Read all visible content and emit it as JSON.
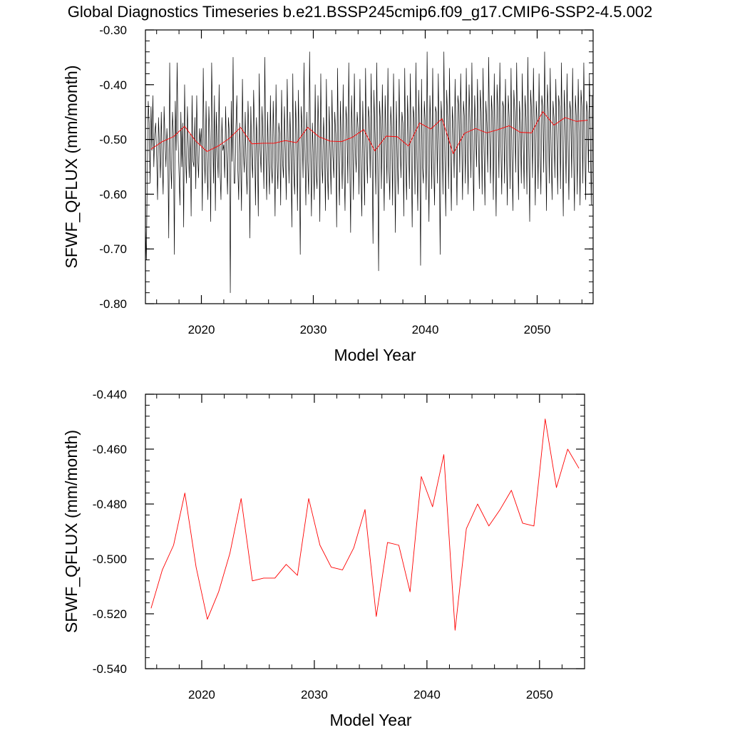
{
  "figure_title": "Global Diagnostics Timeseries b.e21.BSSP245cmip6.f09_g17.CMIP6-SSP2-4.5.002",
  "colors": {
    "monthly_series": "#000000",
    "annual_series": "#ff0000",
    "axes": "#000000"
  },
  "chart_data": [
    {
      "type": "line",
      "title": "",
      "xlabel": "Model Year",
      "ylabel": "SFWF_QFLUX (mm/month)",
      "xlim": [
        2015.0,
        2055.0
      ],
      "ylim": [
        -0.8,
        -0.3
      ],
      "xticks": [
        2020,
        2030,
        2040,
        2050
      ],
      "xtick_labels": [
        "2020",
        "2030",
        "2040",
        "2050"
      ],
      "yticks": [
        -0.8,
        -0.7,
        -0.6,
        -0.5,
        -0.4,
        -0.3
      ],
      "ytick_labels": [
        "-0.80",
        "-0.70",
        "-0.60",
        "-0.50",
        "-0.40",
        "-0.30"
      ],
      "series": [
        {
          "name": "monthly",
          "color": "#000000",
          "x_start": 2015.0,
          "x_step": 0.0833333,
          "values": [
            -0.66,
            -0.72,
            -0.56,
            -0.43,
            -0.47,
            -0.58,
            -0.44,
            -0.52,
            -0.42,
            -0.55,
            -0.49,
            -0.47,
            -0.53,
            -0.61,
            -0.46,
            -0.51,
            -0.57,
            -0.45,
            -0.54,
            -0.6,
            -0.44,
            -0.5,
            -0.55,
            -0.48,
            -0.52,
            -0.68,
            -0.36,
            -0.54,
            -0.59,
            -0.45,
            -0.49,
            -0.71,
            -0.43,
            -0.52,
            -0.36,
            -0.5,
            -0.56,
            -0.62,
            -0.45,
            -0.55,
            -0.47,
            -0.66,
            -0.4,
            -0.53,
            -0.58,
            -0.44,
            -0.51,
            -0.57,
            -0.49,
            -0.64,
            -0.42,
            -0.54,
            -0.55,
            -0.46,
            -0.59,
            -0.42,
            -0.53,
            -0.57,
            -0.48,
            -0.51,
            -0.48,
            -0.63,
            -0.37,
            -0.52,
            -0.58,
            -0.43,
            -0.55,
            -0.61,
            -0.44,
            -0.5,
            -0.65,
            -0.36,
            -0.47,
            -0.58,
            -0.42,
            -0.63,
            -0.45,
            -0.52,
            -0.57,
            -0.4,
            -0.56,
            -0.61,
            -0.46,
            -0.52,
            -0.51,
            -0.57,
            -0.44,
            -0.53,
            -0.6,
            -0.46,
            -0.49,
            -0.78,
            -0.43,
            -0.54,
            -0.35,
            -0.58,
            -0.58,
            -0.48,
            -0.42,
            -0.55,
            -0.61,
            -0.47,
            -0.53,
            -0.63,
            -0.39,
            -0.52,
            -0.56,
            -0.45,
            -0.55,
            -0.6,
            -0.43,
            -0.5,
            -0.68,
            -0.44,
            -0.53,
            -0.57,
            -0.41,
            -0.49,
            -0.62,
            -0.46,
            -0.51,
            -0.64,
            -0.38,
            -0.52,
            -0.56,
            -0.44,
            -0.5,
            -0.59,
            -0.35,
            -0.52,
            -0.61,
            -0.45,
            -0.54,
            -0.6,
            -0.42,
            -0.55,
            -0.58,
            -0.43,
            -0.51,
            -0.64,
            -0.4,
            -0.53,
            -0.59,
            -0.47,
            -0.49,
            -0.62,
            -0.41,
            -0.54,
            -0.57,
            -0.44,
            -0.52,
            -0.61,
            -0.39,
            -0.5,
            -0.58,
            -0.45,
            -0.52,
            -0.66,
            -0.38,
            -0.56,
            -0.6,
            -0.43,
            -0.49,
            -0.63,
            -0.41,
            -0.53,
            -0.71,
            -0.44,
            -0.48,
            -0.57,
            -0.36,
            -0.52,
            -0.62,
            -0.45,
            -0.54,
            -0.6,
            -0.34,
            -0.51,
            -0.64,
            -0.47,
            -0.53,
            -0.61,
            -0.4,
            -0.56,
            -0.59,
            -0.42,
            -0.5,
            -0.65,
            -0.38,
            -0.54,
            -0.58,
            -0.46,
            -0.51,
            -0.63,
            -0.39,
            -0.55,
            -0.61,
            -0.44,
            -0.52,
            -0.6,
            -0.41,
            -0.53,
            -0.57,
            -0.45,
            -0.49,
            -0.66,
            -0.37,
            -0.54,
            -0.62,
            -0.43,
            -0.51,
            -0.59,
            -0.4,
            -0.55,
            -0.63,
            -0.44,
            -0.47,
            -0.58,
            -0.36,
            -0.53,
            -0.67,
            -0.42,
            -0.5,
            -0.61,
            -0.38,
            -0.52,
            -0.56,
            -0.45,
            -0.48,
            -0.6,
            -0.39,
            -0.55,
            -0.64,
            -0.43,
            -0.52,
            -0.62,
            -0.37,
            -0.51,
            -0.58,
            -0.44,
            -0.46,
            -0.57,
            -0.38,
            -0.53,
            -0.69,
            -0.41,
            -0.49,
            -0.6,
            -0.36,
            -0.54,
            -0.74,
            -0.43,
            -0.47,
            -0.59,
            -0.4,
            -0.52,
            -0.63,
            -0.42,
            -0.5,
            -0.58,
            -0.37,
            -0.55,
            -0.61,
            -0.44,
            -0.48,
            -0.62,
            -0.38,
            -0.51,
            -0.67,
            -0.43,
            -0.53,
            -0.6,
            -0.39,
            -0.5,
            -0.57,
            -0.45,
            -0.47,
            -0.64,
            -0.37,
            -0.54,
            -0.61,
            -0.42,
            -0.49,
            -0.59,
            -0.38,
            -0.52,
            -0.66,
            -0.44,
            -0.46,
            -0.6,
            -0.36,
            -0.53,
            -0.63,
            -0.41,
            -0.5,
            -0.73,
            -0.39,
            -0.55,
            -0.58,
            -0.43,
            -0.47,
            -0.61,
            -0.34,
            -0.52,
            -0.65,
            -0.42,
            -0.48,
            -0.59,
            -0.37,
            -0.54,
            -0.62,
            -0.44,
            -0.45,
            -0.58,
            -0.38,
            -0.51,
            -0.71,
            -0.43,
            -0.47,
            -0.6,
            -0.34,
            -0.53,
            -0.64,
            -0.41,
            -0.46,
            -0.59,
            -0.37,
            -0.52,
            -0.63,
            -0.44,
            -0.48,
            -0.57,
            -0.39,
            -0.5,
            -0.62,
            -0.42,
            -0.44,
            -0.56,
            -0.38,
            -0.49,
            -0.61,
            -0.43,
            -0.46,
            -0.58,
            -0.37,
            -0.51,
            -0.6,
            -0.4,
            -0.47,
            -0.57,
            -0.36,
            -0.52,
            -0.63,
            -0.42,
            -0.48,
            -0.55,
            -0.39,
            -0.5,
            -0.59,
            -0.41,
            -0.45,
            -0.6,
            -0.37,
            -0.51,
            -0.62,
            -0.43,
            -0.47,
            -0.56,
            -0.35,
            -0.49,
            -0.58,
            -0.42,
            -0.46,
            -0.61,
            -0.38,
            -0.52,
            -0.64,
            -0.4,
            -0.45,
            -0.57,
            -0.36,
            -0.5,
            -0.6,
            -0.43,
            -0.44,
            -0.58,
            -0.39,
            -0.51,
            -0.62,
            -0.42,
            -0.46,
            -0.59,
            -0.37,
            -0.53,
            -0.63,
            -0.41,
            -0.45,
            -0.56,
            -0.36,
            -0.49,
            -0.61,
            -0.43,
            -0.47,
            -0.58,
            -0.38,
            -0.5,
            -0.59,
            -0.42,
            -0.46,
            -0.6,
            -0.35,
            -0.52,
            -0.65,
            -0.41,
            -0.45,
            -0.57,
            -0.37,
            -0.49,
            -0.62,
            -0.43,
            -0.47,
            -0.59,
            -0.38,
            -0.51,
            -0.6,
            -0.42,
            -0.44,
            -0.56,
            -0.34,
            -0.5,
            -0.63,
            -0.4,
            -0.45,
            -0.58,
            -0.37,
            -0.52,
            -0.61,
            -0.43,
            -0.46,
            -0.57,
            -0.39,
            -0.49,
            -0.6,
            -0.42,
            -0.44,
            -0.59,
            -0.36,
            -0.51,
            -0.64,
            -0.41,
            -0.47,
            -0.58,
            -0.38,
            -0.5,
            -0.61,
            -0.43,
            -0.45,
            -0.57,
            -0.37,
            -0.52,
            -0.63,
            -0.42,
            -0.46,
            -0.6,
            -0.39,
            -0.49,
            -0.62,
            -0.41,
            -0.44,
            -0.58,
            -0.36,
            -0.5,
            -0.61,
            -0.43,
            -0.45,
            -0.56,
            -0.38,
            -0.48,
            -0.62,
            -0.42
          ]
        },
        {
          "name": "annual mean",
          "color": "#ff0000",
          "x": [
            2015.5,
            2016.5,
            2017.5,
            2018.5,
            2019.5,
            2020.5,
            2021.5,
            2022.5,
            2023.5,
            2024.5,
            2025.5,
            2026.5,
            2027.5,
            2028.5,
            2029.5,
            2030.5,
            2031.5,
            2032.5,
            2033.5,
            2034.5,
            2035.5,
            2036.5,
            2037.5,
            2038.5,
            2039.5,
            2040.5,
            2041.5,
            2042.5,
            2043.5,
            2044.5,
            2045.5,
            2046.5,
            2047.5,
            2048.5,
            2049.5,
            2050.5,
            2051.5,
            2052.5,
            2053.5,
            2054.5
          ],
          "values": [
            -0.518,
            -0.504,
            -0.495,
            -0.476,
            -0.503,
            -0.522,
            -0.512,
            -0.498,
            -0.478,
            -0.508,
            -0.507,
            -0.507,
            -0.502,
            -0.506,
            -0.478,
            -0.495,
            -0.503,
            -0.504,
            -0.496,
            -0.482,
            -0.521,
            -0.494,
            -0.495,
            -0.512,
            -0.47,
            -0.481,
            -0.462,
            -0.526,
            -0.489,
            -0.48,
            -0.488,
            -0.482,
            -0.475,
            -0.487,
            -0.488,
            -0.449,
            -0.474,
            -0.46,
            -0.467,
            -0.465
          ]
        }
      ]
    },
    {
      "type": "line",
      "title": "",
      "xlabel": "Model Year",
      "ylabel": "SFWF_QFLUX (mm/month)",
      "xlim": [
        2015.0,
        2054.0
      ],
      "ylim": [
        -0.54,
        -0.44
      ],
      "xticks": [
        2020,
        2030,
        2040,
        2050
      ],
      "xtick_labels": [
        "2020",
        "2030",
        "2040",
        "2050"
      ],
      "yticks": [
        -0.54,
        -0.52,
        -0.5,
        -0.48,
        -0.46,
        -0.44
      ],
      "ytick_labels": [
        "-0.540",
        "-0.520",
        "-0.500",
        "-0.480",
        "-0.460",
        "-0.440"
      ],
      "series": [
        {
          "name": "annual mean",
          "color": "#ff0000",
          "x": [
            2015.5,
            2016.5,
            2017.5,
            2018.5,
            2019.5,
            2020.5,
            2021.5,
            2022.5,
            2023.5,
            2024.5,
            2025.5,
            2026.5,
            2027.5,
            2028.5,
            2029.5,
            2030.5,
            2031.5,
            2032.5,
            2033.5,
            2034.5,
            2035.5,
            2036.5,
            2037.5,
            2038.5,
            2039.5,
            2040.5,
            2041.5,
            2042.5,
            2043.5,
            2044.5,
            2045.5,
            2046.5,
            2047.5,
            2048.5,
            2049.5,
            2050.5,
            2051.5,
            2052.5,
            2053.5
          ],
          "values": [
            -0.518,
            -0.504,
            -0.495,
            -0.476,
            -0.503,
            -0.522,
            -0.512,
            -0.498,
            -0.478,
            -0.508,
            -0.507,
            -0.507,
            -0.502,
            -0.506,
            -0.478,
            -0.495,
            -0.503,
            -0.504,
            -0.496,
            -0.482,
            -0.521,
            -0.494,
            -0.495,
            -0.512,
            -0.47,
            -0.481,
            -0.462,
            -0.526,
            -0.489,
            -0.48,
            -0.488,
            -0.482,
            -0.475,
            -0.487,
            -0.488,
            -0.449,
            -0.474,
            -0.46,
            -0.467
          ]
        }
      ]
    }
  ]
}
